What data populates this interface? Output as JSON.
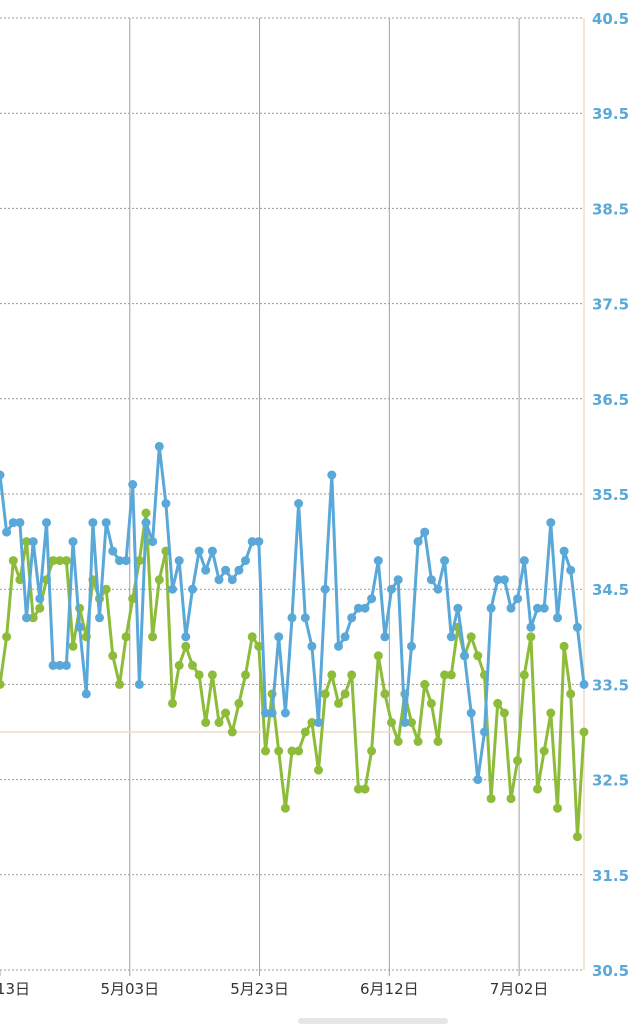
{
  "chart_data": {
    "type": "line",
    "title": "",
    "xlabel": "",
    "ylabel": "",
    "ylim": [
      30.5,
      40.5
    ],
    "y_ticks": [
      "40.5",
      "39.5",
      "38.5",
      "37.5",
      "36.5",
      "35.5",
      "34.5",
      "33.5",
      "32.5",
      "31.5",
      "30.5"
    ],
    "x_ticks": [
      {
        "label": "13日",
        "day": 0
      },
      {
        "label": "5月03日",
        "day": 20
      },
      {
        "label": "5月23日",
        "day": 40
      },
      {
        "label": "6月12日",
        "day": 60
      },
      {
        "label": "7月02日",
        "day": 80
      }
    ],
    "x_domain": [
      0,
      90
    ],
    "reference_line": 33.0,
    "grid": true,
    "legend": "none",
    "colors": {
      "series1": "#5aa8d8",
      "series2": "#8dbb3a",
      "tick_label": "#5aa8d8",
      "axis_line": "#f1dcc6",
      "reference": "#f1dcc6"
    },
    "series": [
      {
        "color": "#5aa8d8",
        "values": [
          35.7,
          35.1,
          35.2,
          35.2,
          34.2,
          35.0,
          34.4,
          35.2,
          33.7,
          33.7,
          33.7,
          35.0,
          34.1,
          33.4,
          35.2,
          34.2,
          35.2,
          34.9,
          34.8,
          34.8,
          35.6,
          33.5,
          35.2,
          35.0,
          36.0,
          35.4,
          34.5,
          34.8,
          34.0,
          34.5,
          34.9,
          34.7,
          34.9,
          34.6,
          34.7,
          34.6,
          34.7,
          34.8,
          35.0,
          35.0,
          33.2,
          33.2,
          34.0,
          33.2,
          34.2,
          35.4,
          34.2,
          33.9,
          33.1,
          34.5,
          35.7,
          33.9,
          34.0,
          34.2,
          34.3,
          34.3,
          34.4,
          34.8,
          34.0,
          34.5,
          34.6,
          33.1,
          33.9,
          35.0,
          35.1,
          34.6,
          34.5,
          34.8,
          34.0,
          34.3,
          33.8,
          33.2,
          32.5,
          33.0,
          34.3,
          34.6,
          34.6,
          34.3,
          34.4,
          34.8,
          34.1,
          34.3,
          34.3,
          35.2,
          34.2,
          34.9,
          34.7,
          34.1,
          33.5
        ]
      },
      {
        "color": "#8dbb3a",
        "values": [
          33.5,
          34.0,
          34.8,
          34.6,
          35.0,
          34.2,
          34.3,
          34.6,
          34.8,
          34.8,
          34.8,
          33.9,
          34.3,
          34.0,
          34.6,
          34.4,
          34.5,
          33.8,
          33.5,
          34.0,
          34.4,
          34.8,
          35.3,
          34.0,
          34.6,
          34.9,
          33.3,
          33.7,
          33.9,
          33.7,
          33.6,
          33.1,
          33.6,
          33.1,
          33.2,
          33.0,
          33.3,
          33.6,
          34.0,
          33.9,
          32.8,
          33.4,
          32.8,
          32.2,
          32.8,
          32.8,
          33.0,
          33.1,
          32.6,
          33.4,
          33.6,
          33.3,
          33.4,
          33.6,
          32.4,
          32.4,
          32.8,
          33.8,
          33.4,
          33.1,
          32.9,
          33.4,
          33.1,
          32.9,
          33.5,
          33.3,
          32.9,
          33.6,
          33.6,
          34.1,
          33.8,
          34.0,
          33.8,
          33.6,
          32.3,
          33.3,
          33.2,
          32.3,
          32.7,
          33.6,
          34.0,
          32.4,
          32.8,
          33.2,
          32.2,
          33.9,
          33.4,
          31.9,
          33.0
        ]
      }
    ]
  }
}
